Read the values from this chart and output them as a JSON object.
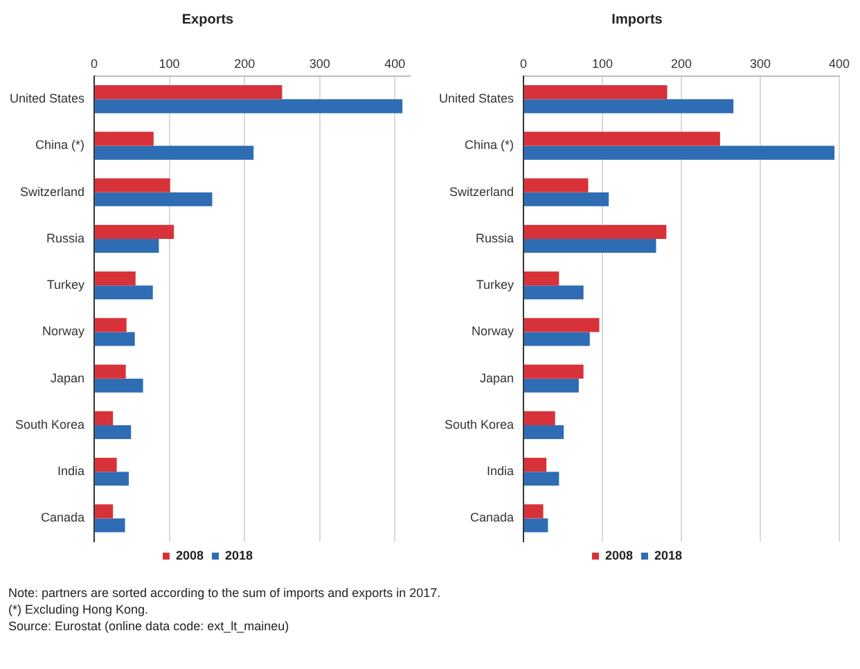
{
  "chart_data": [
    {
      "type": "bar",
      "title": "Exports",
      "orientation": "horizontal",
      "categories": [
        "United States",
        "China (*)",
        "Switzerland",
        "Russia",
        "Turkey",
        "Norway",
        "Japan",
        "South Korea",
        "India",
        "Canada"
      ],
      "series": [
        {
          "name": "2008",
          "color": "#d73239",
          "values": [
            250,
            79,
            101,
            106,
            55,
            43,
            42,
            25,
            30,
            25
          ]
        },
        {
          "name": "2018",
          "color": "#2e6db4",
          "values": [
            410,
            212,
            157,
            86,
            78,
            54,
            65,
            49,
            46,
            41
          ]
        }
      ],
      "xlim": [
        0,
        420
      ],
      "xticks": [
        0,
        100,
        200,
        300,
        400
      ],
      "grid": "x",
      "legend": "bottom",
      "annotations": [
        "Note: partners are sorted according to the sum of imports and exports in 2017.",
        "(*) Excluding Hong Kong.",
        "Source: Eurostat (online data code: ext_lt_maineu)"
      ]
    },
    {
      "type": "bar",
      "title": "Imports",
      "orientation": "horizontal",
      "categories": [
        "United States",
        "China (*)",
        "Switzerland",
        "Russia",
        "Turkey",
        "Norway",
        "Japan",
        "South Korea",
        "India",
        "Canada"
      ],
      "series": [
        {
          "name": "2008",
          "color": "#d73239",
          "values": [
            182,
            249,
            82,
            181,
            45,
            96,
            76,
            40,
            29,
            25
          ]
        },
        {
          "name": "2018",
          "color": "#2e6db4",
          "values": [
            266,
            394,
            108,
            168,
            76,
            84,
            70,
            51,
            45,
            31
          ]
        }
      ],
      "xlim": [
        0,
        400
      ],
      "xticks": [
        0,
        100,
        200,
        300,
        400
      ],
      "grid": "x",
      "legend": "bottom"
    }
  ]
}
